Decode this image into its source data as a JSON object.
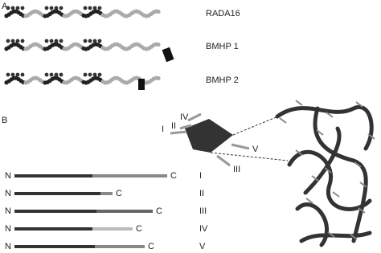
{
  "panel_a": {
    "label": "A",
    "peptides": [
      "RADA16",
      "BMHP 1",
      "BMHP 2"
    ]
  },
  "panel_b": {
    "label": "B",
    "fiber_labels": [
      "IV",
      "II",
      "I",
      "V",
      "III"
    ],
    "rows": [
      {
        "n": "N",
        "c": "C",
        "label": "I"
      },
      {
        "n": "N",
        "c": "C",
        "label": "II"
      },
      {
        "n": "N",
        "c": "C",
        "label": "III"
      },
      {
        "n": "N",
        "c": "C",
        "label": "IV"
      },
      {
        "n": "N",
        "c": "C",
        "label": "V"
      }
    ]
  }
}
